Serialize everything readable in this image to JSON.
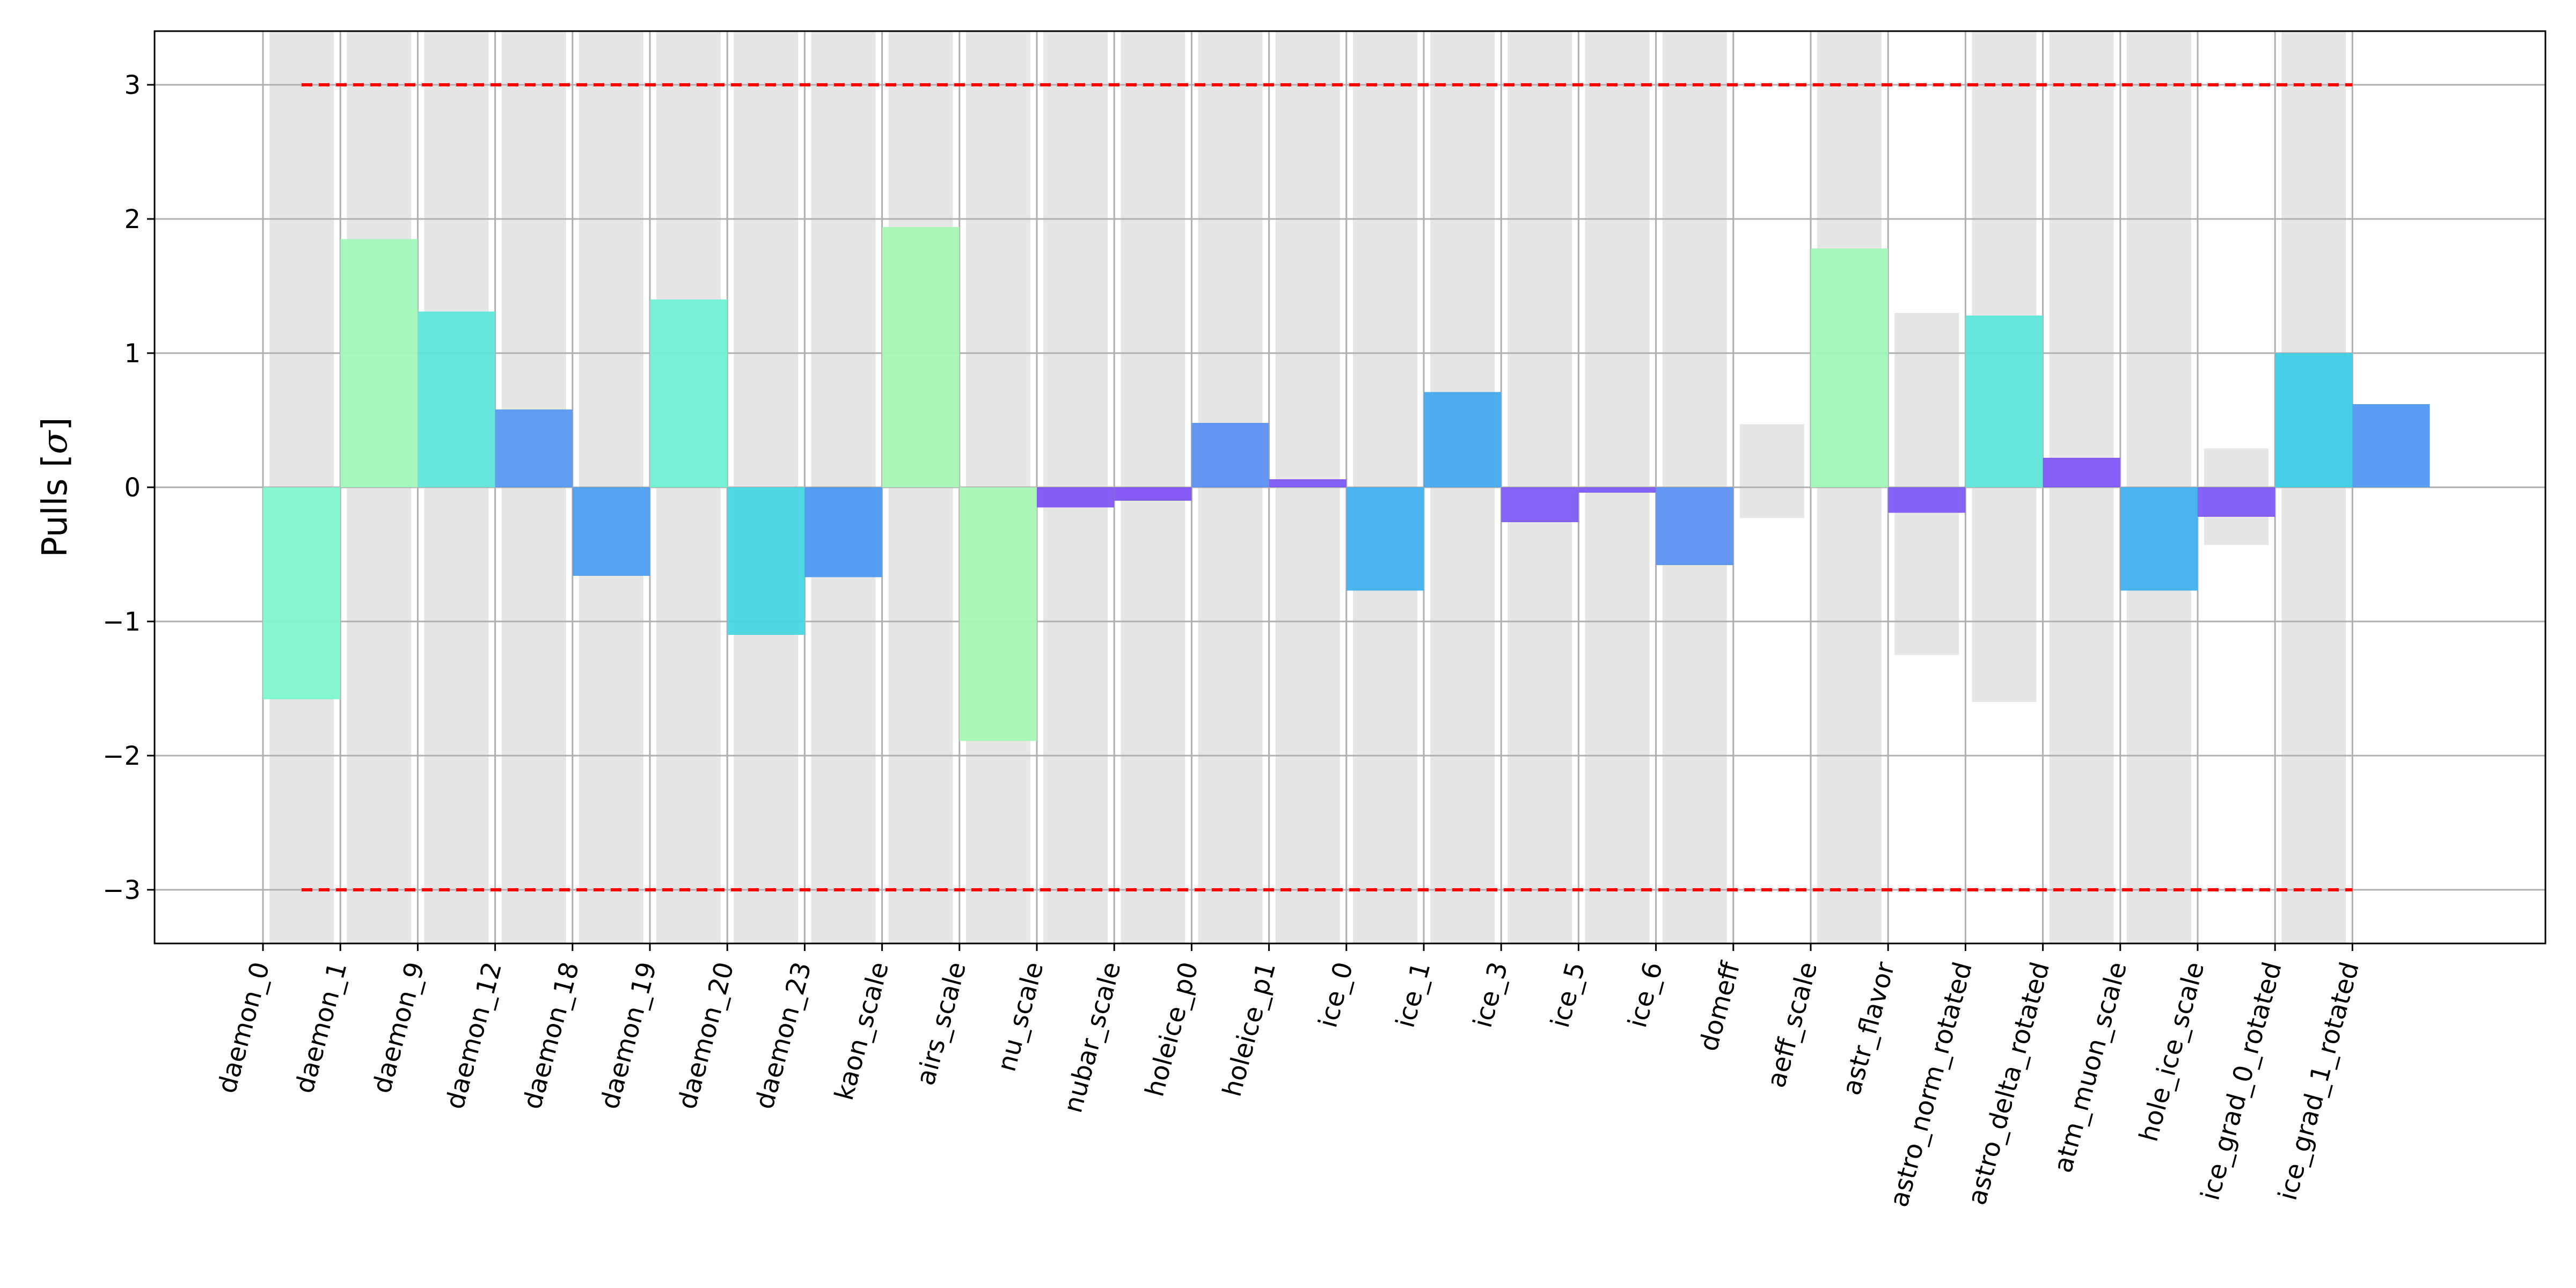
{
  "chart_data": {
    "type": "bar",
    "title": "",
    "xlabel": "",
    "ylabel": "Pulls [σ]",
    "ylabel_main": "Pulls [",
    "ylabel_symbol": "σ",
    "ylabel_close": "]",
    "ylim": [
      -3.4,
      3.4
    ],
    "yticks": [
      -3,
      -2,
      -1,
      0,
      1,
      2,
      3
    ],
    "ytick_labels": [
      "−3",
      "−2",
      "−1",
      "0",
      "1",
      "2",
      "3"
    ],
    "grid": true,
    "reference_lines": [
      3,
      -3
    ],
    "reference_color": "#ff0000",
    "band_color": "#e6e6e6",
    "categories": [
      "daemon_0",
      "daemon_1",
      "daemon_9",
      "daemon_12",
      "daemon_18",
      "daemon_19",
      "daemon_20",
      "daemon_23",
      "kaon_scale",
      "airs_scale",
      "nu_scale",
      "nubar_scale",
      "holeice_p0",
      "holeice_p1",
      "ice_0",
      "ice_1",
      "ice_3",
      "ice_5",
      "ice_6",
      "domeff",
      "aeff_scale",
      "astr_flavor",
      "astro_norm_rotated",
      "astro_delta_rotated",
      "atm_muon_scale",
      "hole_ice_scale",
      "ice_grad_0_rotated",
      "ice_grad_1_rotated"
    ],
    "values": [
      -1.58,
      1.85,
      1.31,
      0.58,
      -0.66,
      1.4,
      -1.1,
      -0.67,
      1.94,
      -1.89,
      -0.15,
      -0.1,
      0.48,
      0.06,
      -0.77,
      0.71,
      -0.26,
      -0.04,
      -0.58,
      null,
      1.78,
      -0.19,
      1.28,
      0.22,
      -0.77,
      -0.22,
      1.0,
      0.62
    ],
    "prior_bands": [
      [
        -3.4,
        3.4
      ],
      [
        -3.4,
        3.4
      ],
      [
        -3.4,
        3.4
      ],
      [
        -3.4,
        3.4
      ],
      [
        -3.4,
        3.4
      ],
      [
        -3.4,
        3.4
      ],
      [
        -3.4,
        3.4
      ],
      [
        -3.4,
        3.4
      ],
      [
        -3.4,
        3.4
      ],
      [
        -3.4,
        3.4
      ],
      [
        -3.4,
        3.4
      ],
      [
        -3.4,
        3.4
      ],
      [
        -3.4,
        3.4
      ],
      [
        -3.4,
        3.4
      ],
      [
        -3.4,
        3.4
      ],
      [
        -3.4,
        3.4
      ],
      [
        -3.4,
        3.4
      ],
      [
        -3.4,
        3.4
      ],
      [
        -3.4,
        3.4
      ],
      [
        -0.23,
        0.47
      ],
      [
        -3.4,
        3.4
      ],
      [
        -1.25,
        1.3
      ],
      [
        -1.6,
        3.4
      ],
      [
        -3.4,
        3.4
      ],
      [
        -3.4,
        3.4
      ],
      [
        -0.43,
        0.29
      ],
      [
        -3.4,
        3.4
      ],
      [
        null,
        null
      ]
    ],
    "bar_colors": [
      "#80f7cc",
      "#a2f8b9",
      "#5fe6d9",
      "#5899f2",
      "#4c9ff0",
      "#6ff2d2",
      "#48d7e2",
      "#4c98ef",
      "#a6f7b3",
      "#a6f7b3",
      "#7f55f6",
      "#8153f6",
      "#5c8ff1",
      "#7b5af6",
      "#40b0ed",
      "#43a9ee",
      "#7c5cf6",
      "#7a5cf6",
      "#5b91f1",
      null,
      "#a0f8b5",
      "#7c5bf6",
      "#5ee6da",
      "#7e56f6",
      "#40b0ed",
      "#7c5bf6",
      "#3ecbe6",
      "#5199f2"
    ]
  }
}
